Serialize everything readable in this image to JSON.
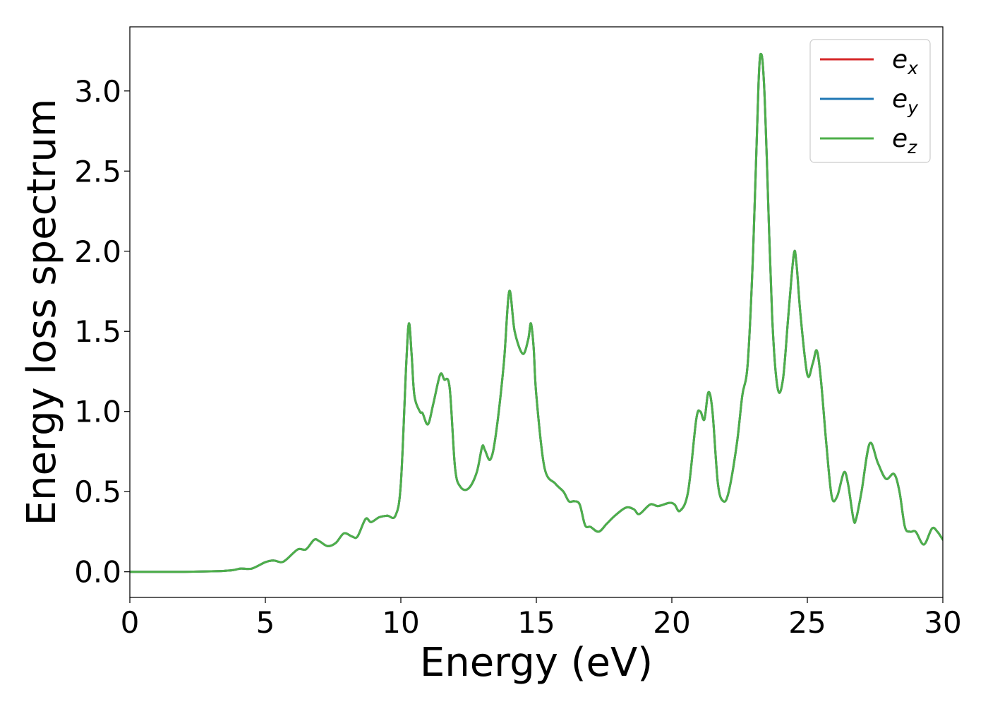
{
  "chart_data": {
    "type": "line",
    "title": "",
    "xlabel": "Energy (eV)",
    "ylabel": "Energy loss spectrum",
    "xlim": [
      0,
      30
    ],
    "ylim": [
      -0.16,
      3.4
    ],
    "xticks": [
      0,
      5,
      10,
      15,
      20,
      25,
      30
    ],
    "xtick_labels": [
      "0",
      "5",
      "10",
      "15",
      "20",
      "25",
      "30"
    ],
    "yticks": [
      0.0,
      0.5,
      1.0,
      1.5,
      2.0,
      2.5,
      3.0
    ],
    "ytick_labels": [
      "0.0",
      "0.5",
      "1.0",
      "1.5",
      "2.0",
      "2.5",
      "3.0"
    ],
    "grid": false,
    "legend_position": "top-right",
    "x": [
      0,
      1,
      2,
      3,
      3.5,
      3.8,
      4.1,
      4.5,
      5.0,
      5.3,
      5.6,
      5.8,
      6.2,
      6.5,
      6.8,
      7.0,
      7.3,
      7.6,
      7.9,
      8.2,
      8.4,
      8.7,
      8.9,
      9.2,
      9.5,
      9.8,
      10.0,
      10.2,
      10.3,
      10.4,
      10.5,
      10.7,
      10.8,
      11.0,
      11.2,
      11.45,
      11.6,
      11.8,
      12.0,
      12.2,
      12.5,
      12.8,
      13.0,
      13.1,
      13.3,
      13.5,
      13.8,
      14.0,
      14.2,
      14.5,
      14.7,
      14.8,
      14.9,
      15.0,
      15.3,
      15.7,
      16.0,
      16.2,
      16.4,
      16.6,
      16.8,
      17.0,
      17.3,
      17.6,
      17.9,
      18.3,
      18.6,
      18.8,
      19.2,
      19.5,
      19.9,
      20.1,
      20.3,
      20.6,
      20.9,
      21.05,
      21.2,
      21.35,
      21.5,
      21.7,
      21.9,
      22.1,
      22.4,
      22.6,
      22.8,
      23.0,
      23.2,
      23.3,
      23.4,
      23.5,
      23.7,
      23.9,
      24.1,
      24.3,
      24.5,
      24.6,
      24.75,
      25.0,
      25.2,
      25.35,
      25.5,
      25.7,
      25.9,
      26.1,
      26.35,
      26.5,
      26.7,
      26.8,
      27.0,
      27.3,
      27.6,
      27.9,
      28.2,
      28.4,
      28.6,
      28.8,
      29.0,
      29.3,
      29.6,
      29.8,
      30.0
    ],
    "series": [
      {
        "name": "$e_x$",
        "color": "#d62728",
        "values": [
          0.0,
          0.0,
          0.0,
          0.003,
          0.006,
          0.01,
          0.02,
          0.02,
          0.06,
          0.07,
          0.06,
          0.08,
          0.14,
          0.14,
          0.2,
          0.19,
          0.16,
          0.18,
          0.24,
          0.22,
          0.22,
          0.33,
          0.31,
          0.34,
          0.35,
          0.35,
          0.55,
          1.3,
          1.55,
          1.35,
          1.1,
          1.0,
          0.99,
          0.92,
          1.05,
          1.23,
          1.2,
          1.15,
          0.65,
          0.53,
          0.52,
          0.62,
          0.78,
          0.76,
          0.7,
          0.85,
          1.3,
          1.75,
          1.5,
          1.36,
          1.45,
          1.55,
          1.4,
          1.1,
          0.65,
          0.55,
          0.5,
          0.44,
          0.44,
          0.42,
          0.29,
          0.28,
          0.25,
          0.3,
          0.35,
          0.4,
          0.39,
          0.36,
          0.42,
          0.41,
          0.43,
          0.42,
          0.38,
          0.5,
          0.95,
          1.0,
          0.95,
          1.12,
          1.0,
          0.55,
          0.44,
          0.5,
          0.8,
          1.1,
          1.3,
          2.0,
          3.05,
          3.23,
          3.05,
          2.6,
          1.6,
          1.15,
          1.2,
          1.6,
          1.98,
          1.92,
          1.6,
          1.23,
          1.3,
          1.38,
          1.2,
          0.8,
          0.47,
          0.47,
          0.62,
          0.55,
          0.33,
          0.33,
          0.5,
          0.8,
          0.68,
          0.58,
          0.61,
          0.5,
          0.28,
          0.25,
          0.25,
          0.17,
          0.27,
          0.25,
          0.2
        ]
      },
      {
        "name": "$e_y$",
        "color": "#1f77b4",
        "values": [
          0.0,
          0.0,
          0.0,
          0.003,
          0.006,
          0.01,
          0.02,
          0.02,
          0.06,
          0.07,
          0.06,
          0.08,
          0.14,
          0.14,
          0.2,
          0.19,
          0.16,
          0.18,
          0.24,
          0.22,
          0.22,
          0.33,
          0.31,
          0.34,
          0.35,
          0.35,
          0.55,
          1.3,
          1.55,
          1.35,
          1.1,
          1.0,
          0.99,
          0.92,
          1.05,
          1.23,
          1.2,
          1.15,
          0.65,
          0.53,
          0.52,
          0.62,
          0.78,
          0.76,
          0.7,
          0.85,
          1.3,
          1.75,
          1.5,
          1.36,
          1.45,
          1.55,
          1.4,
          1.1,
          0.65,
          0.55,
          0.5,
          0.44,
          0.44,
          0.42,
          0.29,
          0.28,
          0.25,
          0.3,
          0.35,
          0.4,
          0.39,
          0.36,
          0.42,
          0.41,
          0.43,
          0.42,
          0.38,
          0.5,
          0.95,
          1.0,
          0.95,
          1.12,
          1.0,
          0.55,
          0.44,
          0.5,
          0.8,
          1.1,
          1.3,
          2.0,
          3.05,
          3.23,
          3.05,
          2.6,
          1.6,
          1.15,
          1.2,
          1.6,
          1.98,
          1.92,
          1.6,
          1.23,
          1.3,
          1.38,
          1.2,
          0.8,
          0.47,
          0.47,
          0.62,
          0.55,
          0.33,
          0.33,
          0.5,
          0.8,
          0.68,
          0.58,
          0.61,
          0.5,
          0.28,
          0.25,
          0.25,
          0.17,
          0.27,
          0.25,
          0.2
        ]
      },
      {
        "name": "$e_z$",
        "color": "#4daf4a",
        "values": [
          0.0,
          0.0,
          0.0,
          0.003,
          0.006,
          0.01,
          0.02,
          0.02,
          0.06,
          0.07,
          0.06,
          0.08,
          0.14,
          0.14,
          0.2,
          0.19,
          0.16,
          0.18,
          0.24,
          0.22,
          0.22,
          0.33,
          0.31,
          0.34,
          0.35,
          0.35,
          0.55,
          1.3,
          1.55,
          1.35,
          1.1,
          1.0,
          0.99,
          0.92,
          1.05,
          1.23,
          1.2,
          1.15,
          0.65,
          0.53,
          0.52,
          0.62,
          0.78,
          0.76,
          0.7,
          0.85,
          1.3,
          1.75,
          1.5,
          1.36,
          1.45,
          1.55,
          1.4,
          1.1,
          0.65,
          0.55,
          0.5,
          0.44,
          0.44,
          0.42,
          0.29,
          0.28,
          0.25,
          0.3,
          0.35,
          0.4,
          0.39,
          0.36,
          0.42,
          0.41,
          0.43,
          0.42,
          0.38,
          0.5,
          0.95,
          1.0,
          0.95,
          1.12,
          1.0,
          0.55,
          0.44,
          0.5,
          0.8,
          1.1,
          1.3,
          2.0,
          3.05,
          3.23,
          3.05,
          2.6,
          1.6,
          1.15,
          1.2,
          1.6,
          1.98,
          1.92,
          1.6,
          1.23,
          1.3,
          1.38,
          1.2,
          0.8,
          0.47,
          0.47,
          0.62,
          0.55,
          0.33,
          0.33,
          0.5,
          0.8,
          0.68,
          0.58,
          0.61,
          0.5,
          0.28,
          0.25,
          0.25,
          0.17,
          0.27,
          0.25,
          0.2
        ]
      }
    ]
  }
}
